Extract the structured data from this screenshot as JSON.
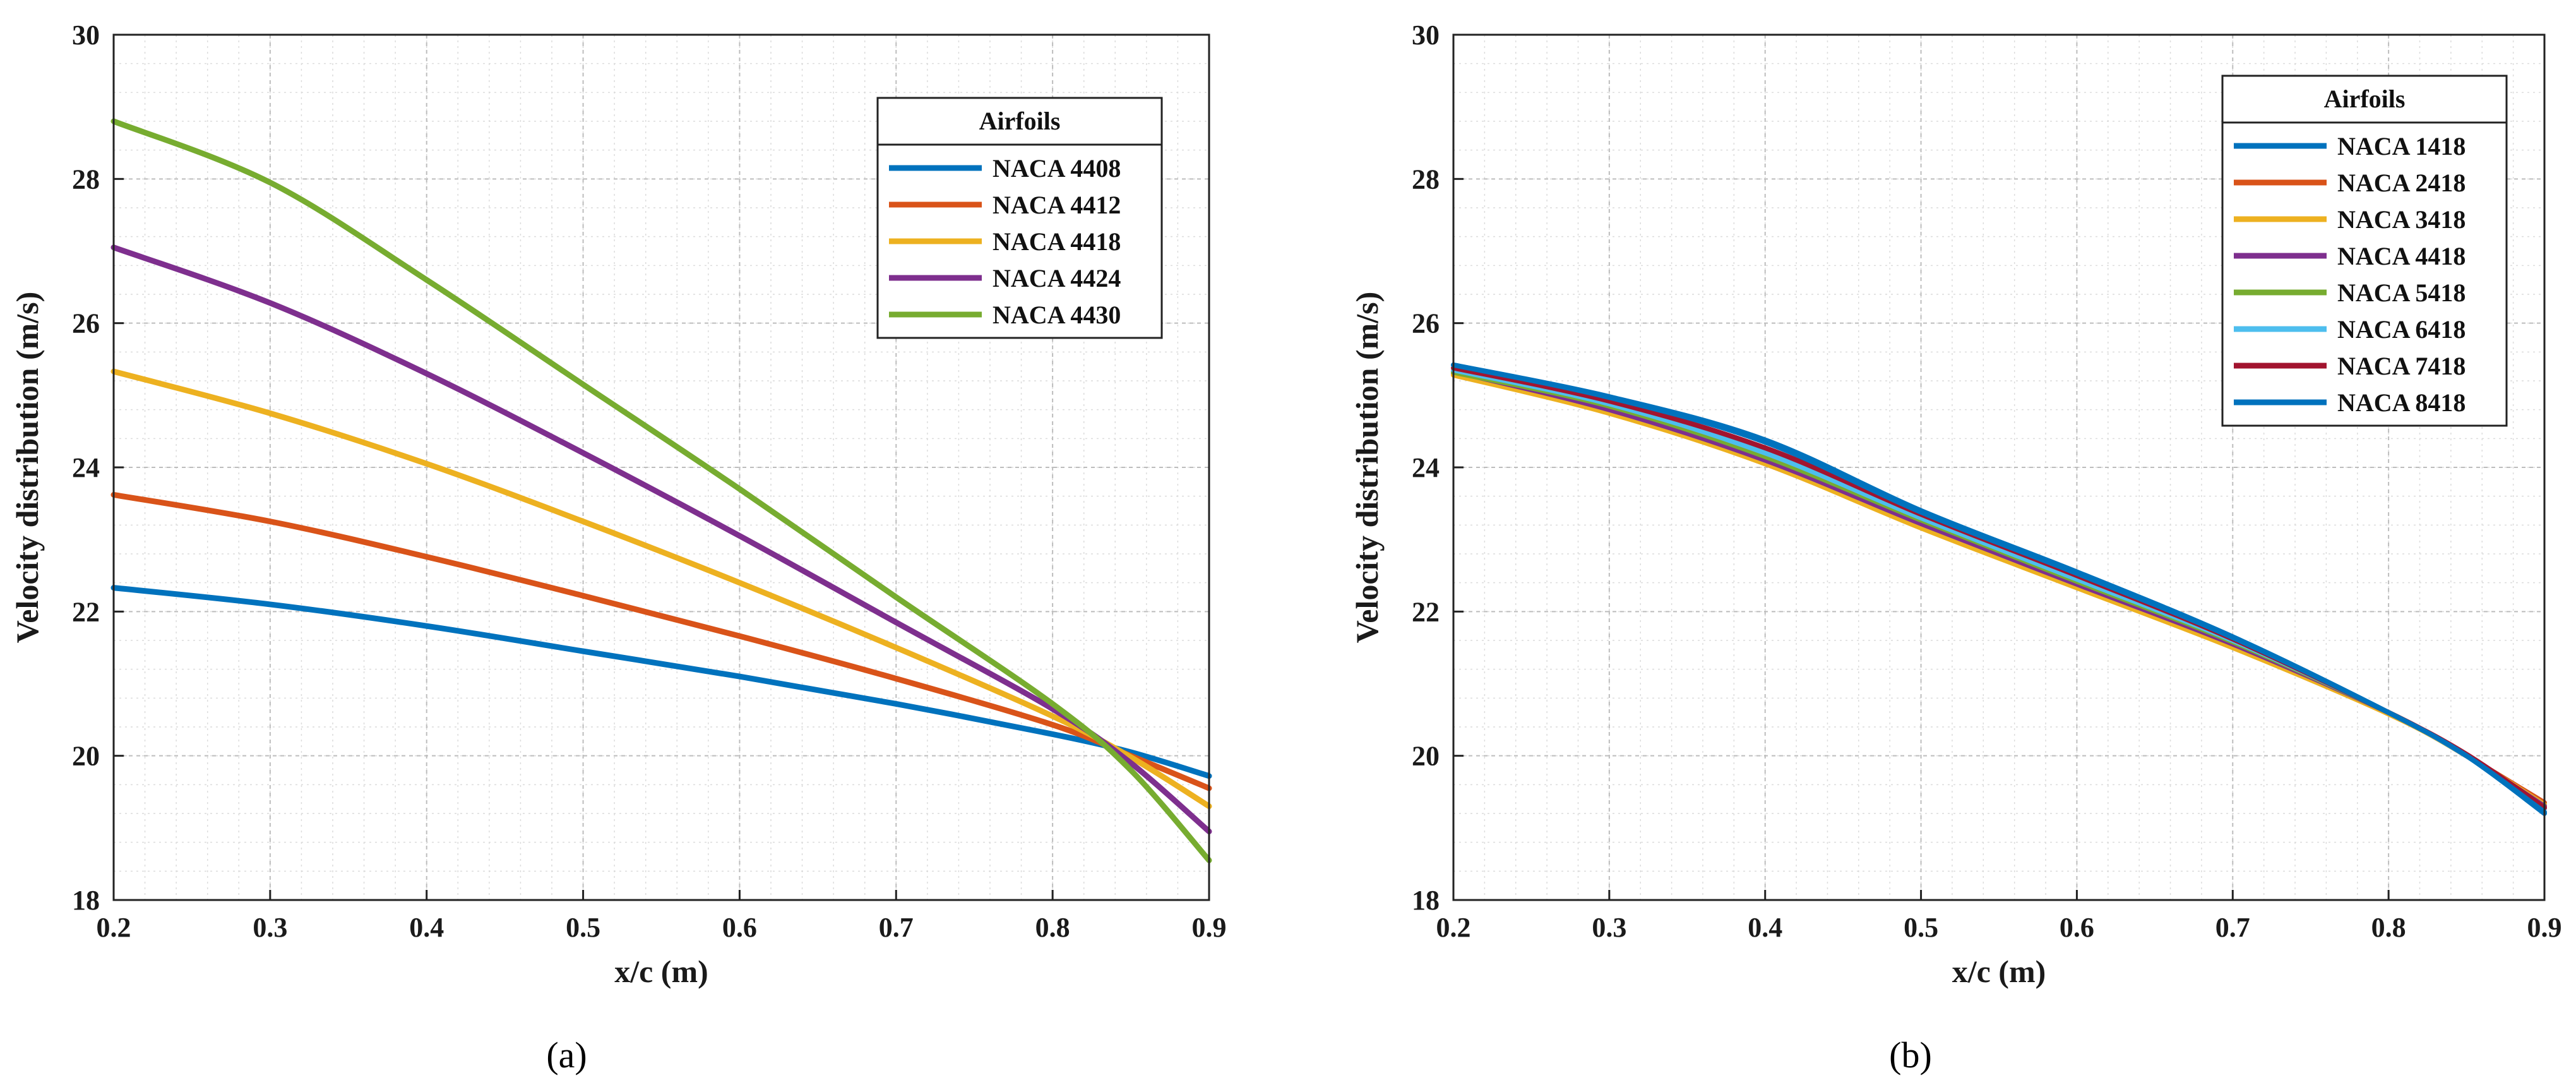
{
  "chart_data": [
    {
      "type": "line",
      "panel_label": "(a)",
      "title": "",
      "xlabel": "x/c (m)",
      "ylabel": "Velocity distribution (m/s)",
      "xlim": [
        0.2,
        0.9
      ],
      "ylim": [
        18,
        30
      ],
      "xticks": [
        0.2,
        0.3,
        0.4,
        0.5,
        0.6,
        0.7,
        0.8,
        0.9
      ],
      "yticks": [
        18,
        20,
        22,
        24,
        26,
        28,
        30
      ],
      "xtick_labels": [
        "0.2",
        "0.3",
        "0.4",
        "0.5",
        "0.6",
        "0.7",
        "0.8",
        "0.9"
      ],
      "ytick_labels": [
        "18",
        "20",
        "22",
        "24",
        "26",
        "28",
        "30"
      ],
      "grid": true,
      "legend_title": "Airfoils",
      "legend_position": "top-right",
      "x": [
        0.2,
        0.3,
        0.4,
        0.5,
        0.6,
        0.7,
        0.8,
        0.85,
        0.9
      ],
      "series": [
        {
          "name": "NACA 4408",
          "color": "#0072BD",
          "values": [
            22.33,
            22.1,
            21.8,
            21.45,
            21.1,
            20.72,
            20.3,
            20.05,
            19.72
          ]
        },
        {
          "name": "NACA 4412",
          "color": "#D95319",
          "values": [
            23.62,
            23.25,
            22.76,
            22.22,
            21.66,
            21.07,
            20.43,
            20.0,
            19.55
          ]
        },
        {
          "name": "NACA 4418",
          "color": "#EDB120",
          "values": [
            25.33,
            24.75,
            24.05,
            23.25,
            22.4,
            21.5,
            20.55,
            19.98,
            19.3
          ]
        },
        {
          "name": "NACA 4424",
          "color": "#7E2F8E",
          "values": [
            27.05,
            26.28,
            25.3,
            24.2,
            23.05,
            21.85,
            20.65,
            19.9,
            18.95
          ]
        },
        {
          "name": "NACA 4430",
          "color": "#77AC30",
          "values": [
            28.8,
            27.95,
            26.6,
            25.15,
            23.7,
            22.2,
            20.72,
            19.8,
            18.55
          ]
        }
      ]
    },
    {
      "type": "line",
      "panel_label": "(b)",
      "title": "",
      "xlabel": "x/c (m)",
      "ylabel": "Velocity distribution (m/s)",
      "xlim": [
        0.2,
        0.9
      ],
      "ylim": [
        18,
        30
      ],
      "xticks": [
        0.2,
        0.3,
        0.4,
        0.5,
        0.6,
        0.7,
        0.8,
        0.9
      ],
      "yticks": [
        18,
        20,
        22,
        24,
        26,
        28,
        30
      ],
      "xtick_labels": [
        "0.2",
        "0.3",
        "0.4",
        "0.5",
        "0.6",
        "0.7",
        "0.8",
        "0.9"
      ],
      "ytick_labels": [
        "18",
        "20",
        "22",
        "24",
        "26",
        "28",
        "30"
      ],
      "grid": true,
      "legend_title": "Airfoils",
      "legend_position": "top-right",
      "x": [
        0.2,
        0.3,
        0.4,
        0.5,
        0.6,
        0.7,
        0.8,
        0.85,
        0.9
      ],
      "series": [
        {
          "name": "NACA 1418",
          "color": "#0072BD",
          "values": [
            25.42,
            24.98,
            24.38,
            23.4,
            22.55,
            21.65,
            20.6,
            20.0,
            19.2
          ]
        },
        {
          "name": "NACA 2418",
          "color": "#D95319",
          "values": [
            25.3,
            24.78,
            24.05,
            23.18,
            22.35,
            21.52,
            20.6,
            20.0,
            19.35
          ]
        },
        {
          "name": "NACA 3418",
          "color": "#EDB120",
          "values": [
            25.28,
            24.75,
            24.05,
            23.16,
            22.33,
            21.5,
            20.58,
            20.0,
            19.32
          ]
        },
        {
          "name": "NACA 4418",
          "color": "#7E2F8E",
          "values": [
            25.33,
            24.8,
            24.1,
            23.22,
            22.38,
            21.55,
            20.6,
            20.0,
            19.3
          ]
        },
        {
          "name": "NACA 5418",
          "color": "#77AC30",
          "values": [
            25.32,
            24.85,
            24.15,
            23.27,
            22.42,
            21.58,
            20.6,
            20.0,
            19.28
          ]
        },
        {
          "name": "NACA 6418",
          "color": "#4DBEEE",
          "values": [
            25.35,
            24.88,
            24.2,
            23.3,
            22.45,
            21.6,
            20.6,
            20.0,
            19.27
          ]
        },
        {
          "name": "NACA 7418",
          "color": "#A2142F",
          "values": [
            25.38,
            24.92,
            24.27,
            23.35,
            22.5,
            21.62,
            20.6,
            20.02,
            19.28
          ]
        },
        {
          "name": "NACA 8418",
          "color": "#0072BD",
          "values": [
            25.42,
            24.97,
            24.35,
            23.38,
            22.53,
            21.64,
            20.6,
            20.0,
            19.22
          ]
        }
      ]
    }
  ]
}
